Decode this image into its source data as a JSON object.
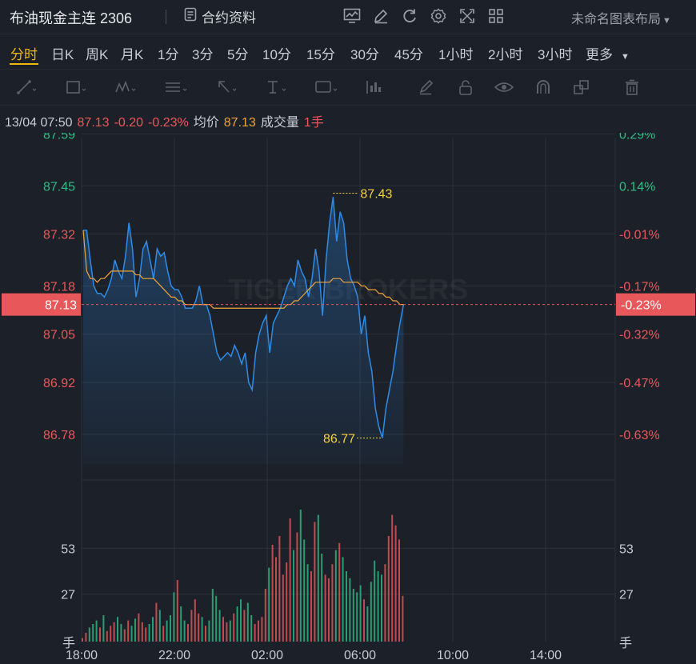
{
  "header": {
    "title": "布油现金主连 2306",
    "contract_label": "合约资料",
    "layout_label": "未命名图表布局",
    "icons": [
      "chart-settings-icon",
      "edit-icon",
      "refresh-icon",
      "gear-icon",
      "fullscreen-icon",
      "grid-layout-icon"
    ]
  },
  "periods": [
    "分时",
    "日K",
    "周K",
    "月K",
    "1分",
    "3分",
    "5分",
    "10分",
    "15分",
    "30分",
    "45分",
    "1小时",
    "2小时",
    "3小时",
    "更多"
  ],
  "active_period": "分时",
  "tools": [
    "line-tool-icon",
    "rectangle-tool-icon",
    "pattern-tool-icon",
    "indicator-tool-icon",
    "arrow-tool-icon",
    "text-tool-icon",
    "label-tool-icon",
    "bar-tool-icon",
    "brush-icon",
    "lock-icon",
    "eye-icon",
    "magnet-icon",
    "layers-icon",
    "trash-icon"
  ],
  "quote": {
    "time": "13/04 07:50",
    "price": "87.13",
    "change": "-0.20",
    "change_pct": "-0.23%",
    "avg_label": "均价",
    "avg_value": "87.13",
    "volume_label": "成交量",
    "volume_value": "1手"
  },
  "watermark": "TIGER BROKERS",
  "chart_data": {
    "type": "line",
    "x_tick_labels": [
      "18:00",
      "22:00",
      "02:00",
      "06:00",
      "10:00",
      "14:00"
    ],
    "price_ticks": [
      87.59,
      87.45,
      87.32,
      87.18,
      87.05,
      86.92,
      86.78
    ],
    "price_tick_labels": [
      "87.59",
      "87.45",
      "87.32",
      "87.18",
      "87.05",
      "86.92",
      "86.78"
    ],
    "pct_tick_labels": [
      "0.29%",
      "0.14%",
      "-0.01%",
      "-0.17%",
      "-0.32%",
      "-0.47%",
      "-0.63%"
    ],
    "prev_close": 87.33,
    "current_price": 87.13,
    "current_price_label": "87.13",
    "current_pct_label": "-0.23%",
    "high": 87.43,
    "high_label": "87.43",
    "low": 86.77,
    "low_label": "86.77",
    "volume_ticks": [
      53,
      27
    ],
    "volume_tick_labels": [
      "53",
      "27"
    ],
    "volume_unit": "手",
    "price_series": [
      87.33,
      87.33,
      87.25,
      87.18,
      87.16,
      87.16,
      87.15,
      87.17,
      87.2,
      87.25,
      87.22,
      87.2,
      87.26,
      87.35,
      87.28,
      87.15,
      87.2,
      87.28,
      87.3,
      87.25,
      87.2,
      87.28,
      87.26,
      87.27,
      87.22,
      87.18,
      87.17,
      87.17,
      87.15,
      87.12,
      87.12,
      87.12,
      87.14,
      87.18,
      87.13,
      87.13,
      87.1,
      87.05,
      87.0,
      86.98,
      86.99,
      87.0,
      86.99,
      87.02,
      87.0,
      86.97,
      87.0,
      86.92,
      86.9,
      87.0,
      87.05,
      87.08,
      87.1,
      87.0,
      87.08,
      87.1,
      87.12,
      87.15,
      87.18,
      87.2,
      87.18,
      87.25,
      87.22,
      87.2,
      87.15,
      87.2,
      87.28,
      87.22,
      87.1,
      87.25,
      87.35,
      87.42,
      87.3,
      87.38,
      87.35,
      87.25,
      87.2,
      87.18,
      87.15,
      87.05,
      87.1,
      87.0,
      86.95,
      86.85,
      86.8,
      86.77,
      86.85,
      86.9,
      86.95,
      87.02,
      87.08,
      87.13
    ],
    "avg_series": [
      87.33,
      87.22,
      87.2,
      87.2,
      87.19,
      87.2,
      87.2,
      87.21,
      87.22,
      87.22,
      87.22,
      87.22,
      87.22,
      87.22,
      87.22,
      87.21,
      87.21,
      87.2,
      87.2,
      87.2,
      87.2,
      87.19,
      87.18,
      87.17,
      87.16,
      87.15,
      87.15,
      87.14,
      87.14,
      87.13,
      87.13,
      87.13,
      87.13,
      87.13,
      87.13,
      87.13,
      87.13,
      87.12,
      87.12,
      87.12,
      87.12,
      87.12,
      87.12,
      87.12,
      87.12,
      87.12,
      87.12,
      87.12,
      87.12,
      87.12,
      87.12,
      87.12,
      87.12,
      87.12,
      87.12,
      87.12,
      87.12,
      87.12,
      87.13,
      87.13,
      87.14,
      87.14,
      87.15,
      87.16,
      87.17,
      87.18,
      87.19,
      87.19,
      87.19,
      87.19,
      87.19,
      87.2,
      87.2,
      87.2,
      87.19,
      87.19,
      87.19,
      87.19,
      87.19,
      87.18,
      87.18,
      87.17,
      87.17,
      87.17,
      87.16,
      87.16,
      87.15,
      87.15,
      87.14,
      87.14,
      87.13,
      87.13
    ],
    "volume_series": [
      2,
      5,
      8,
      10,
      12,
      8,
      15,
      6,
      9,
      11,
      14,
      10,
      7,
      12,
      9,
      13,
      16,
      11,
      8,
      10,
      14,
      22,
      18,
      9,
      12,
      15,
      28,
      35,
      20,
      12,
      10,
      18,
      24,
      16,
      14,
      9,
      12,
      30,
      26,
      18,
      14,
      11,
      12,
      16,
      20,
      24,
      18,
      22,
      15,
      10,
      12,
      14,
      30,
      42,
      55,
      48,
      60,
      38,
      45,
      70,
      52,
      62,
      75,
      58,
      44,
      40,
      68,
      72,
      50,
      38,
      36,
      44,
      52,
      56,
      48,
      40,
      36,
      30,
      28,
      32,
      24,
      20,
      34,
      46,
      40,
      38,
      44,
      60,
      72,
      66,
      58,
      26
    ]
  }
}
